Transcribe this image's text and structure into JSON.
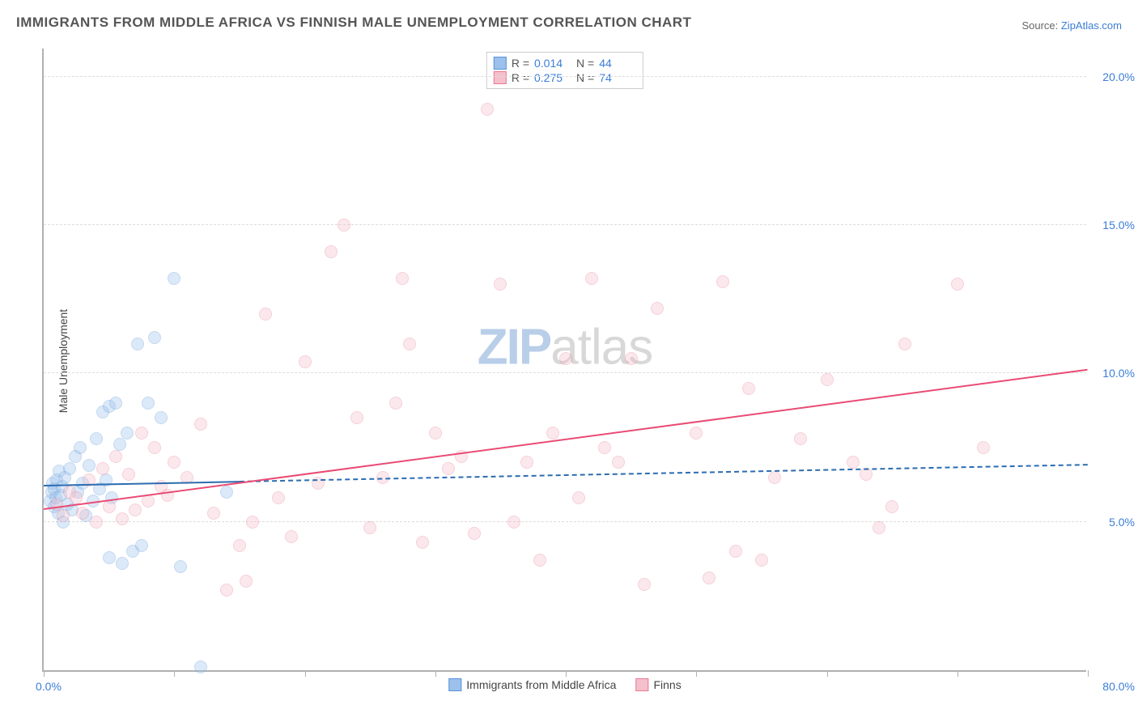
{
  "chart": {
    "type": "scatter",
    "title": "IMMIGRANTS FROM MIDDLE AFRICA VS FINNISH MALE UNEMPLOYMENT CORRELATION CHART",
    "source_prefix": "Source: ",
    "source_link": "ZipAtlas.com",
    "ylabel": "Male Unemployment",
    "background_color": "#ffffff",
    "grid_color": "#dddddd",
    "axis_color": "#b0b0b0",
    "tick_label_color": "#3b7dd8",
    "tick_fontsize": 14,
    "label_fontsize": 14,
    "title_fontsize": 17,
    "title_color": "#555555",
    "xlim": [
      0,
      80
    ],
    "ylim": [
      0,
      21
    ],
    "xtick_positions": [
      0,
      10,
      20,
      30,
      40,
      50,
      60,
      70,
      80
    ],
    "xtick_labels": {
      "left": "0.0%",
      "right": "80.0%"
    },
    "ytick_positions": [
      5,
      10,
      15,
      20
    ],
    "ytick_labels": [
      "5.0%",
      "10.0%",
      "15.0%",
      "20.0%"
    ],
    "watermark": {
      "part1": "ZIP",
      "part2": "atlas",
      "color1": "#b9cee8",
      "color2": "#d8d8d8",
      "fontsize": 62
    },
    "marker_radius": 8,
    "marker_opacity": 0.35,
    "series": [
      {
        "name": "Immigrants from Middle Africa",
        "color_fill": "#9bc1ec",
        "color_stroke": "#5a94d8",
        "r_value": "0.014",
        "n_value": "44",
        "trend": {
          "x1": 0,
          "y1": 6.2,
          "x2": 80,
          "y2": 6.9,
          "color": "#2b6cb0",
          "dashed_after_x": 15
        },
        "points": [
          [
            0.5,
            5.7
          ],
          [
            0.6,
            6.0
          ],
          [
            0.7,
            6.3
          ],
          [
            0.8,
            5.5
          ],
          [
            0.8,
            6.1
          ],
          [
            0.9,
            5.8
          ],
          [
            1.0,
            6.4
          ],
          [
            1.1,
            5.3
          ],
          [
            1.2,
            6.7
          ],
          [
            1.3,
            5.9
          ],
          [
            1.4,
            6.2
          ],
          [
            1.5,
            5.0
          ],
          [
            1.6,
            6.5
          ],
          [
            1.8,
            5.6
          ],
          [
            2.0,
            6.8
          ],
          [
            2.2,
            5.4
          ],
          [
            2.4,
            7.2
          ],
          [
            2.6,
            6.0
          ],
          [
            2.8,
            7.5
          ],
          [
            3.0,
            6.3
          ],
          [
            3.2,
            5.2
          ],
          [
            3.5,
            6.9
          ],
          [
            3.8,
            5.7
          ],
          [
            4.0,
            7.8
          ],
          [
            4.3,
            6.1
          ],
          [
            4.5,
            8.7
          ],
          [
            4.8,
            6.4
          ],
          [
            5.0,
            8.9
          ],
          [
            5.2,
            5.8
          ],
          [
            5.5,
            9.0
          ],
          [
            5.8,
            7.6
          ],
          [
            6.0,
            3.6
          ],
          [
            6.4,
            8.0
          ],
          [
            6.8,
            4.0
          ],
          [
            7.2,
            11.0
          ],
          [
            7.5,
            4.2
          ],
          [
            8.0,
            9.0
          ],
          [
            8.5,
            11.2
          ],
          [
            9.0,
            8.5
          ],
          [
            10.0,
            13.2
          ],
          [
            10.5,
            3.5
          ],
          [
            12.0,
            0.1
          ],
          [
            14.0,
            6.0
          ],
          [
            5.0,
            3.8
          ]
        ]
      },
      {
        "name": "Finns",
        "color_fill": "#f4c0cc",
        "color_stroke": "#e77a94",
        "r_value": "0.275",
        "n_value": "74",
        "trend": {
          "x1": 0,
          "y1": 5.4,
          "x2": 80,
          "y2": 10.1,
          "color": "#e94b74",
          "dashed_after_x": null
        },
        "points": [
          [
            1.0,
            5.6
          ],
          [
            1.5,
            5.2
          ],
          [
            2.0,
            6.0
          ],
          [
            2.5,
            5.8
          ],
          [
            3.0,
            5.3
          ],
          [
            3.5,
            6.4
          ],
          [
            4.0,
            5.0
          ],
          [
            4.5,
            6.8
          ],
          [
            5.0,
            5.5
          ],
          [
            5.5,
            7.2
          ],
          [
            6.0,
            5.1
          ],
          [
            6.5,
            6.6
          ],
          [
            7.0,
            5.4
          ],
          [
            7.5,
            8.0
          ],
          [
            8.0,
            5.7
          ],
          [
            8.5,
            7.5
          ],
          [
            9.0,
            6.2
          ],
          [
            9.5,
            5.9
          ],
          [
            10.0,
            7.0
          ],
          [
            11.0,
            6.5
          ],
          [
            12.0,
            8.3
          ],
          [
            13.0,
            5.3
          ],
          [
            14.0,
            2.7
          ],
          [
            15.0,
            4.2
          ],
          [
            15.5,
            3.0
          ],
          [
            16.0,
            5.0
          ],
          [
            17.0,
            12.0
          ],
          [
            18.0,
            5.8
          ],
          [
            19.0,
            4.5
          ],
          [
            20.0,
            10.4
          ],
          [
            21.0,
            6.3
          ],
          [
            22.0,
            14.1
          ],
          [
            23.0,
            15.0
          ],
          [
            24.0,
            8.5
          ],
          [
            25.0,
            4.8
          ],
          [
            26.0,
            6.5
          ],
          [
            27.0,
            9.0
          ],
          [
            27.5,
            13.2
          ],
          [
            28.0,
            11.0
          ],
          [
            29.0,
            4.3
          ],
          [
            30.0,
            8.0
          ],
          [
            31.0,
            6.8
          ],
          [
            32.0,
            7.2
          ],
          [
            33.0,
            4.6
          ],
          [
            34.0,
            18.9
          ],
          [
            35.0,
            13.0
          ],
          [
            36.0,
            5.0
          ],
          [
            37.0,
            7.0
          ],
          [
            38.0,
            3.7
          ],
          [
            39.0,
            8.0
          ],
          [
            40.0,
            10.5
          ],
          [
            41.0,
            5.8
          ],
          [
            42.0,
            13.2
          ],
          [
            43.0,
            7.5
          ],
          [
            44.0,
            7.0
          ],
          [
            45.0,
            10.5
          ],
          [
            46.0,
            2.9
          ],
          [
            47.0,
            12.2
          ],
          [
            50.0,
            8.0
          ],
          [
            51.0,
            3.1
          ],
          [
            52.0,
            13.1
          ],
          [
            53.0,
            4.0
          ],
          [
            54.0,
            9.5
          ],
          [
            55.0,
            3.7
          ],
          [
            56.0,
            6.5
          ],
          [
            58.0,
            7.8
          ],
          [
            60.0,
            9.8
          ],
          [
            62.0,
            7.0
          ],
          [
            63.0,
            6.6
          ],
          [
            64.0,
            4.8
          ],
          [
            65.0,
            5.5
          ],
          [
            66.0,
            11.0
          ],
          [
            70.0,
            13.0
          ],
          [
            72.0,
            7.5
          ]
        ]
      }
    ],
    "bottom_legend": [
      {
        "label": "Immigrants from Middle Africa",
        "fill": "#9bc1ec",
        "stroke": "#5a94d8"
      },
      {
        "label": "Finns",
        "fill": "#f4c0cc",
        "stroke": "#e77a94"
      }
    ]
  }
}
